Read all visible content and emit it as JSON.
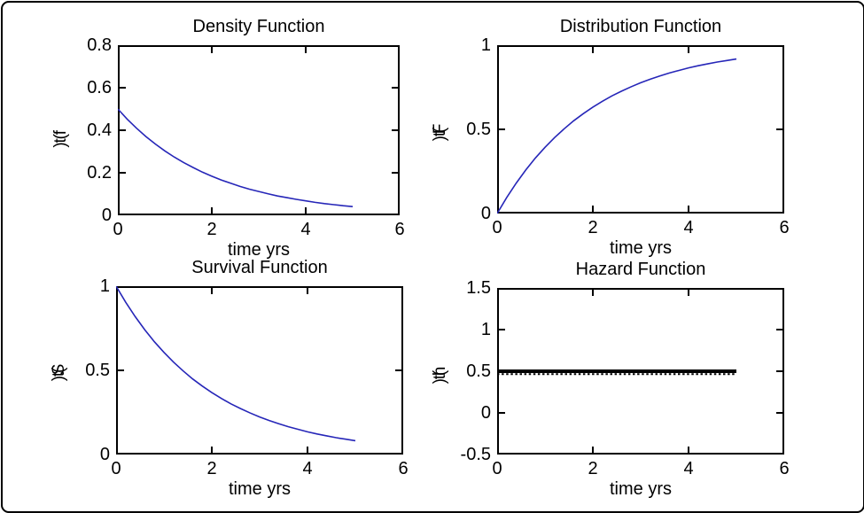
{
  "figure": {
    "background": "#ffffff",
    "border_color": "#000000",
    "curve_color": "#2626b8",
    "hazard_color": "#000000"
  },
  "chart_data": [
    {
      "type": "line",
      "title": "Density Function",
      "xlabel": "time yrs",
      "ylabel": "f(t)",
      "xlim": [
        0,
        6
      ],
      "ylim": [
        0,
        0.8
      ],
      "xticks": [
        "0",
        "2",
        "4",
        "6"
      ],
      "yticks": [
        "0",
        "0.2",
        "0.4",
        "0.6",
        "0.8"
      ],
      "grid": false,
      "legend": null,
      "line_color": "#2626b8",
      "line_width": 1.6,
      "x": [
        0,
        0.2,
        0.4,
        0.6,
        0.8,
        1,
        1.2,
        1.4,
        1.6,
        1.8,
        2,
        2.2,
        2.4,
        2.6,
        2.8,
        3,
        3.2,
        3.4,
        3.6,
        3.8,
        4,
        4.2,
        4.4,
        4.6,
        4.8,
        5
      ],
      "y": [
        0.5,
        0.452,
        0.409,
        0.37,
        0.335,
        0.303,
        0.274,
        0.248,
        0.225,
        0.203,
        0.184,
        0.166,
        0.151,
        0.136,
        0.123,
        0.112,
        0.101,
        0.091,
        0.083,
        0.075,
        0.068,
        0.061,
        0.055,
        0.05,
        0.045,
        0.041
      ]
    },
    {
      "type": "line",
      "title": "Distribution Function",
      "xlabel": "time yrs",
      "ylabel": "F(t)",
      "xlim": [
        0,
        6
      ],
      "ylim": [
        0,
        1
      ],
      "xticks": [
        "0",
        "2",
        "4",
        "6"
      ],
      "yticks": [
        "0",
        "0.5",
        "1"
      ],
      "grid": false,
      "legend": null,
      "line_color": "#2626b8",
      "line_width": 1.6,
      "x": [
        0,
        0.2,
        0.4,
        0.6,
        0.8,
        1,
        1.2,
        1.4,
        1.6,
        1.8,
        2,
        2.2,
        2.4,
        2.6,
        2.8,
        3,
        3.2,
        3.4,
        3.6,
        3.8,
        4,
        4.2,
        4.4,
        4.6,
        4.8,
        5
      ],
      "y": [
        0,
        0.095,
        0.181,
        0.259,
        0.33,
        0.393,
        0.451,
        0.503,
        0.551,
        0.593,
        0.632,
        0.667,
        0.699,
        0.727,
        0.753,
        0.777,
        0.798,
        0.817,
        0.835,
        0.85,
        0.865,
        0.878,
        0.889,
        0.9,
        0.909,
        0.918
      ]
    },
    {
      "type": "line",
      "title": "Survival Function",
      "xlabel": "time yrs",
      "ylabel": "S(t)",
      "xlim": [
        0,
        6
      ],
      "ylim": [
        0,
        1
      ],
      "xticks": [
        "0",
        "2",
        "4",
        "6"
      ],
      "yticks": [
        "0",
        "0.5",
        "1"
      ],
      "grid": false,
      "legend": null,
      "line_color": "#2626b8",
      "line_width": 1.6,
      "x": [
        0,
        0.2,
        0.4,
        0.6,
        0.8,
        1,
        1.2,
        1.4,
        1.6,
        1.8,
        2,
        2.2,
        2.4,
        2.6,
        2.8,
        3,
        3.2,
        3.4,
        3.6,
        3.8,
        4,
        4.2,
        4.4,
        4.6,
        4.8,
        5
      ],
      "y": [
        1,
        0.905,
        0.819,
        0.741,
        0.67,
        0.607,
        0.549,
        0.497,
        0.449,
        0.407,
        0.368,
        0.333,
        0.301,
        0.273,
        0.247,
        0.223,
        0.202,
        0.183,
        0.165,
        0.15,
        0.135,
        0.122,
        0.111,
        0.1,
        0.091,
        0.082
      ]
    },
    {
      "type": "line",
      "title": "Hazard Function",
      "xlabel": "time yrs",
      "ylabel": "h(t)",
      "xlim": [
        0,
        6
      ],
      "ylim": [
        -0.5,
        1.5
      ],
      "xticks": [
        "0",
        "2",
        "4",
        "6"
      ],
      "yticks": [
        "-0.5",
        "0",
        "0.5",
        "1",
        "1.5"
      ],
      "grid": false,
      "legend": null,
      "line_color": "#000000",
      "line_width": 4,
      "dot_marker_underlay": true,
      "x": [
        0,
        5
      ],
      "y": [
        0.5,
        0.5
      ]
    }
  ]
}
